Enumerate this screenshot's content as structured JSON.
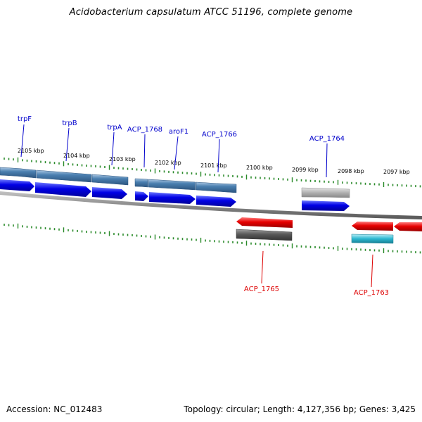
{
  "title": "Acidobacterium capsulatum ATCC 51196, complete genome",
  "footer": {
    "accession": "Accession: NC_012483",
    "stats": "Topology: circular; Length: 4,127,356 bp; Genes: 3,425"
  },
  "colors": {
    "forward_cds": "#0000e6",
    "reverse_cds": "#e60000",
    "forward_gene": "#4a7fb0",
    "reverse_gene": "#585858",
    "pseudo_gene": "#aaaaaa",
    "rna_gene": "#2bb7d0",
    "backbone": "#8a8a8a",
    "tick": "#2a8a2a",
    "forward_label": "#0000cc",
    "reverse_label": "#dd0000"
  },
  "kbp_labels": [
    "2105 kbp",
    "2104 kbp",
    "2103 kbp",
    "2102 kbp",
    "2101 kbp",
    "2100 kbp",
    "2099 kbp",
    "2098 kbp",
    "2097 kbp"
  ],
  "forward_gene_labels": [
    "trpF",
    "trpB",
    "trpA",
    "ACP_1768",
    "aroF1",
    "ACP_1766",
    "ACP_1764"
  ],
  "reverse_gene_labels": [
    "ACP_1765",
    "ACP_1763"
  ]
}
